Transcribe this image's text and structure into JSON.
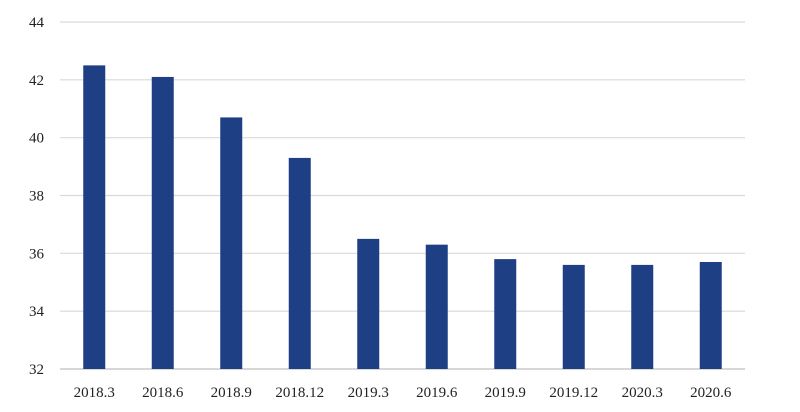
{
  "chart_data": {
    "type": "bar",
    "categories": [
      "2018.3",
      "2018.6",
      "2018.9",
      "2018.12",
      "2019.3",
      "2019.6",
      "2019.9",
      "2019.12",
      "2020.3",
      "2020.6"
    ],
    "values": [
      42.5,
      42.1,
      40.7,
      39.3,
      36.5,
      36.3,
      35.8,
      35.6,
      35.6,
      35.7
    ],
    "title": "",
    "xlabel": "",
    "ylabel": "",
    "ylim": [
      32,
      44
    ],
    "yticks": [
      "32",
      "34",
      "36",
      "38",
      "40",
      "42",
      "44"
    ],
    "grid": "horizontal",
    "legend": "none",
    "bar_color": "#1f3f85",
    "grid_color": "#d9d9d9"
  }
}
